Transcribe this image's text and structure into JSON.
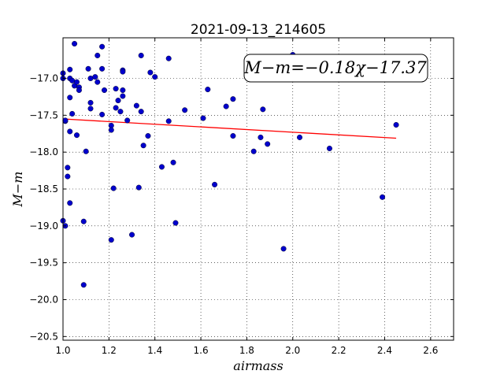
{
  "chart_data": {
    "type": "scatter",
    "title": "2021-09-13_214605",
    "xlabel": "airmass",
    "ylabel": "M−m",
    "xlim": [
      1.0,
      2.7
    ],
    "ylim": [
      -20.55,
      -16.45
    ],
    "x_ticks": [
      1.0,
      1.2,
      1.4,
      1.6,
      1.8,
      2.0,
      2.2,
      2.4,
      2.6
    ],
    "x_tick_labels": [
      "1.0",
      "1.2",
      "1.4",
      "1.6",
      "1.8",
      "2.0",
      "2.2",
      "2.4",
      "2.6"
    ],
    "y_ticks": [
      -17.0,
      -17.5,
      -18.0,
      -18.5,
      -19.0,
      -19.5,
      -20.0,
      -20.5
    ],
    "y_tick_labels": [
      "−17.0",
      "−17.5",
      "−18.0",
      "−18.5",
      "−19.0",
      "−19.5",
      "−20.0",
      "−20.5"
    ],
    "grid": true,
    "annotation": "M−m=−0.18χ−17.37",
    "fit": {
      "slope": -0.18,
      "intercept": -17.37,
      "x_range": [
        1.0,
        2.45
      ],
      "color": "#ff0000"
    },
    "point_color": "#0000cc",
    "points": [
      [
        1.0,
        -16.93
      ],
      [
        1.0,
        -17.0
      ],
      [
        1.0,
        -18.93
      ],
      [
        1.01,
        -17.58
      ],
      [
        1.01,
        -17.57
      ],
      [
        1.01,
        -19.0
      ],
      [
        1.02,
        -18.21
      ],
      [
        1.02,
        -18.33
      ],
      [
        1.03,
        -16.88
      ],
      [
        1.03,
        -17.0
      ],
      [
        1.03,
        -17.26
      ],
      [
        1.03,
        -17.72
      ],
      [
        1.03,
        -18.69
      ],
      [
        1.04,
        -17.03
      ],
      [
        1.04,
        -17.48
      ],
      [
        1.05,
        -16.53
      ],
      [
        1.05,
        -17.1
      ],
      [
        1.06,
        -17.05
      ],
      [
        1.06,
        -17.77
      ],
      [
        1.07,
        -17.12
      ],
      [
        1.07,
        -17.16
      ],
      [
        1.09,
        -18.94
      ],
      [
        1.09,
        -19.8
      ],
      [
        1.1,
        -17.99
      ],
      [
        1.11,
        -16.87
      ],
      [
        1.12,
        -17.0
      ],
      [
        1.12,
        -17.33
      ],
      [
        1.12,
        -17.41
      ],
      [
        1.14,
        -16.98
      ],
      [
        1.15,
        -16.69
      ],
      [
        1.15,
        -17.05
      ],
      [
        1.17,
        -16.57
      ],
      [
        1.17,
        -16.87
      ],
      [
        1.17,
        -17.49
      ],
      [
        1.18,
        -17.16
      ],
      [
        1.21,
        -17.64
      ],
      [
        1.21,
        -17.7
      ],
      [
        1.21,
        -19.19
      ],
      [
        1.22,
        -18.49
      ],
      [
        1.23,
        -17.14
      ],
      [
        1.23,
        -17.4
      ],
      [
        1.24,
        -17.3
      ],
      [
        1.25,
        -17.45
      ],
      [
        1.26,
        -16.89
      ],
      [
        1.26,
        -16.91
      ],
      [
        1.26,
        -17.16
      ],
      [
        1.26,
        -17.24
      ],
      [
        1.28,
        -17.57
      ],
      [
        1.3,
        -19.12
      ],
      [
        1.32,
        -17.37
      ],
      [
        1.33,
        -18.48
      ],
      [
        1.34,
        -17.45
      ],
      [
        1.34,
        -16.69
      ],
      [
        1.35,
        -17.91
      ],
      [
        1.37,
        -17.78
      ],
      [
        1.38,
        -16.92
      ],
      [
        1.4,
        -16.98
      ],
      [
        1.43,
        -18.2
      ],
      [
        1.46,
        -16.73
      ],
      [
        1.46,
        -17.58
      ],
      [
        1.48,
        -18.14
      ],
      [
        1.49,
        -18.96
      ],
      [
        1.53,
        -17.43
      ],
      [
        1.61,
        -17.54
      ],
      [
        1.63,
        -17.15
      ],
      [
        1.66,
        -18.44
      ],
      [
        1.71,
        -17.38
      ],
      [
        1.74,
        -17.78
      ],
      [
        1.74,
        -17.28
      ],
      [
        1.83,
        -17.99
      ],
      [
        1.86,
        -17.8
      ],
      [
        1.87,
        -17.42
      ],
      [
        1.89,
        -17.89
      ],
      [
        1.96,
        -19.31
      ],
      [
        2.0,
        -16.68
      ],
      [
        2.03,
        -17.8
      ],
      [
        2.16,
        -17.95
      ],
      [
        2.39,
        -18.61
      ],
      [
        2.45,
        -17.63
      ]
    ]
  }
}
